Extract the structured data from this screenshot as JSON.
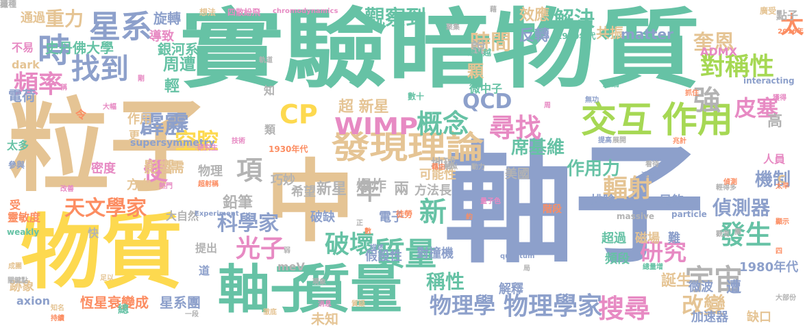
{
  "colors": {
    "yellow": "#fdd94f",
    "green": "#66c2a5",
    "blue": "#8da0cb",
    "tan": "#e5c494",
    "orange": "#fc8d62",
    "pink": "#e78ac3",
    "lime": "#a6d854",
    "gray": "#b3b3b3"
  },
  "words": [
    {
      "text": "軸子"
    },
    {
      "text": "實驗暗物質"
    },
    {
      "text": "粒子"
    },
    {
      "text": "物質"
    },
    {
      "text": "中"
    },
    {
      "text": "質量"
    },
    {
      "text": "軸子"
    },
    {
      "text": "交互"
    },
    {
      "text": "作用"
    },
    {
      "text": "發現理論"
    },
    {
      "text": "WIMP"
    },
    {
      "text": "CP"
    },
    {
      "text": "概念"
    },
    {
      "text": "宇宙"
    },
    {
      "text": "星系"
    },
    {
      "text": "找到"
    },
    {
      "text": "時"
    },
    {
      "text": "尋找"
    },
    {
      "text": "強"
    },
    {
      "text": "對稱性"
    },
    {
      "text": "皮塞"
    },
    {
      "text": "搜尋"
    },
    {
      "text": "發生"
    },
    {
      "text": "質量"
    },
    {
      "text": "破壞"
    },
    {
      "text": "研究"
    },
    {
      "text": "物理學家"
    },
    {
      "text": "物理學"
    },
    {
      "text": "霹靂"
    },
    {
      "text": "光子"
    },
    {
      "text": "便"
    },
    {
      "text": "項"
    },
    {
      "text": "空腔"
    },
    {
      "text": "QCD"
    },
    {
      "text": "輻射"
    },
    {
      "text": "頻率"
    },
    {
      "text": "天文學家"
    },
    {
      "text": "科學家"
    },
    {
      "text": "觀察到"
    },
    {
      "text": "時間"
    },
    {
      "text": "解決"
    },
    {
      "text": "奎恩"
    },
    {
      "text": "太"
    },
    {
      "text": "重力"
    },
    {
      "text": "史丹佛大學"
    },
    {
      "text": "銀河系"
    },
    {
      "text": "新"
    },
    {
      "text": "年"
    },
    {
      "text": "爆炸"
    },
    {
      "text": "偵測器"
    },
    {
      "text": "機制"
    },
    {
      "text": "席基維"
    },
    {
      "text": "作用力"
    },
    {
      "text": "超 新星"
    },
    {
      "text": "誕生"
    },
    {
      "text": "改變"
    },
    {
      "text": "稱性"
    },
    {
      "text": "高"
    },
    {
      "text": "鉛筆"
    },
    {
      "text": "兩"
    },
    {
      "text": "新星"
    },
    {
      "text": "周遭"
    },
    {
      "text": "輕"
    },
    {
      "text": "顆"
    },
    {
      "text": "說"
    },
    {
      "text": "效應"
    },
    {
      "text": "反轉"
    },
    {
      "text": "共振"
    },
    {
      "text": "matter"
    },
    {
      "text": "ADMX"
    },
    {
      "text": "1980年代"
    },
    {
      "text": "微波"
    },
    {
      "text": "遭"
    },
    {
      "text": "頻段"
    },
    {
      "text": "超過"
    },
    {
      "text": "磁場"
    },
    {
      "text": "難"
    },
    {
      "text": "假設性"
    },
    {
      "text": "對撞機"
    },
    {
      "text": "破缺"
    },
    {
      "text": "電子"
    },
    {
      "text": "恆星衰變成"
    },
    {
      "text": "星系團"
    },
    {
      "text": "axion"
    },
    {
      "text": "跡象"
    },
    {
      "text": "未知"
    },
    {
      "text": "解釋"
    },
    {
      "text": "加速器"
    },
    {
      "text": "缺口"
    },
    {
      "text": "旋轉"
    },
    {
      "text": "導致"
    },
    {
      "text": "通過"
    },
    {
      "text": "不易"
    },
    {
      "text": "dark"
    },
    {
      "text": "電荷"
    },
    {
      "text": "作用"
    },
    {
      "text": "密度"
    },
    {
      "text": "太多"
    },
    {
      "text": "影響"
    },
    {
      "text": "方向"
    },
    {
      "text": "需"
    },
    {
      "text": "物理"
    },
    {
      "text": "巧妙"
    },
    {
      "text": "希望"
    },
    {
      "text": "方法長"
    },
    {
      "text": "可能性"
    },
    {
      "text": "地球"
    },
    {
      "text": "美國"
    },
    {
      "text": "排除"
    },
    {
      "text": "足夠"
    },
    {
      "text": "C"
    },
    {
      "text": "人員"
    },
    {
      "text": "微中子"
    },
    {
      "text": "supersymmetry"
    },
    {
      "text": "1930年代"
    },
    {
      "text": "meV"
    },
    {
      "text": "靈敏度"
    },
    {
      "text": "受"
    },
    {
      "text": "快"
    },
    {
      "text": "大自然"
    },
    {
      "text": "提出"
    },
    {
      "text": "道"
    },
    {
      "text": "總"
    },
    {
      "text": "類"
    },
    {
      "text": "知"
    },
    {
      "text": "更"
    },
    {
      "text": "令"
    },
    {
      "text": "點子"
    },
    {
      "text": "廣受"
    },
    {
      "text": "想法"
    },
    {
      "text": "四散紛飛"
    },
    {
      "text": "chromodynamics"
    },
    {
      "text": "聚集"
    },
    {
      "text": "1970年代"
    },
    {
      "text": "2016年"
    },
    {
      "text": "interacting"
    },
    {
      "text": "結論"
    },
    {
      "text": "抓住"
    },
    {
      "text": "數十"
    },
    {
      "text": "無功"
    },
    {
      "text": "兆計"
    },
    {
      "text": "看待"
    },
    {
      "text": "輕得多"
    },
    {
      "text": "massive"
    },
    {
      "text": "particle"
    },
    {
      "text": "weakly"
    },
    {
      "text": "Experiment"
    },
    {
      "text": "quantum"
    },
    {
      "text": "徒勞"
    },
    {
      "text": "數"
    },
    {
      "text": "參與"
    },
    {
      "text": "改善"
    },
    {
      "text": "熱門"
    },
    {
      "text": "超射稱"
    },
    {
      "text": "研究生"
    },
    {
      "text": "技術"
    },
    {
      "text": "偵測"
    },
    {
      "text": "觀測"
    },
    {
      "text": "顯示"
    },
    {
      "text": "速度"
    },
    {
      "text": "總量增"
    },
    {
      "text": "成團"
    },
    {
      "text": "關鍵點"
    },
    {
      "text": "知名"
    },
    {
      "text": "持續"
    },
    {
      "text": "足以"
    },
    {
      "text": "消息"
    },
    {
      "text": "質疑"
    },
    {
      "text": "徹底"
    },
    {
      "text": "現象"
    },
    {
      "text": "一段"
    },
    {
      "text": "大部份"
    },
    {
      "text": "太早"
    },
    {
      "text": "提高"
    },
    {
      "text": "展開"
    },
    {
      "text": "軌道"
    },
    {
      "text": "納入"
    },
    {
      "text": "越"
    },
    {
      "text": "稱"
    },
    {
      "text": "剛"
    },
    {
      "text": "大幅"
    },
    {
      "text": "藉由"
    },
    {
      "text": "類似"
    },
    {
      "text": "動力"
    },
    {
      "text": "量子色"
    },
    {
      "text": "弱"
    },
    {
      "text": "描述"
    },
    {
      "text": "局"
    },
    {
      "text": "階段"
    },
    {
      "text": "正"
    },
    {
      "text": "約"
    },
    {
      "text": "周"
    },
    {
      "text": "藉"
    },
    {
      "text": "團"
    },
    {
      "text": "四"
    },
    {
      "text": "獲得"
    },
    {
      "text": "穩"
    },
    {
      "text": "員種"
    }
  ]
}
